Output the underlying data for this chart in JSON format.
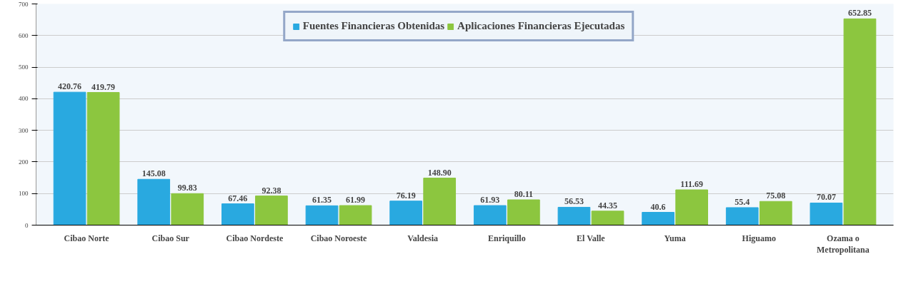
{
  "chart_data": {
    "type": "bar",
    "categories": [
      "Cibao Norte",
      "Cibao Sur",
      "Cibao Nordeste",
      "Cibao Noroeste",
      "Valdesia",
      "Enriquillo",
      "El Valle",
      "Yuma",
      "Higuamo",
      "Ozama o Metropolitana"
    ],
    "series": [
      {
        "name": "Fuentes Financieras Obtenidas",
        "color": "#29a9e0",
        "values": [
          420.76,
          145.08,
          67.46,
          61.35,
          76.19,
          61.93,
          56.53,
          40.6,
          55.4,
          70.07
        ],
        "value_labels": [
          "420.76",
          "145.08",
          "67.46",
          "61.35",
          "76.19",
          "61.93",
          "56.53",
          "40.6",
          "55.4",
          "70.07"
        ]
      },
      {
        "name": "Aplicaciones Financieras Ejecutadas",
        "color": "#8cc63f",
        "values": [
          419.79,
          99.83,
          92.38,
          61.99,
          148.9,
          80.11,
          44.35,
          111.69,
          75.08,
          652.85
        ],
        "value_labels": [
          "419.79",
          "99.83",
          "92.38",
          "61.99",
          "148.90",
          "80.11",
          "44.35",
          "111.69",
          "75.08",
          "652.85"
        ]
      }
    ],
    "ylim": [
      0,
      700
    ],
    "yticks": [
      0,
      100,
      200,
      300,
      400,
      500,
      600,
      700
    ],
    "grid": "y",
    "legend": "top"
  }
}
